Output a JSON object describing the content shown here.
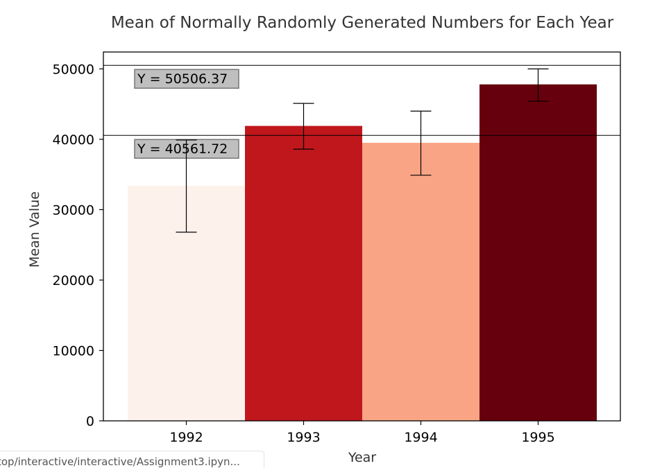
{
  "chart_data": {
    "type": "bar",
    "title": "Mean of Normally Randomly Generated Numbers for Each Year",
    "xlabel": "Year",
    "ylabel": "Mean Value",
    "categories": [
      "1992",
      "1993",
      "1994",
      "1995"
    ],
    "values": [
      33400,
      41900,
      39500,
      47800
    ],
    "error_low": [
      26800,
      38600,
      34900,
      45400
    ],
    "error_high": [
      39900,
      45100,
      44000,
      50000
    ],
    "colors": [
      "#fdf1ec",
      "#c0171d",
      "#f9a585",
      "#67000d"
    ],
    "ylim": [
      0,
      52400
    ],
    "yticks": [
      0,
      10000,
      20000,
      30000,
      40000,
      50000
    ],
    "ytick_labels": [
      "0",
      "10000",
      "20000",
      "30000",
      "40000",
      "50000"
    ],
    "reference_lines": [
      {
        "y": 50506.37,
        "label": "Y = 50506.37"
      },
      {
        "y": 40561.72,
        "label": "Y = 40561.72"
      }
    ]
  },
  "statusbar": {
    "text": "top/interactive/interactive/Assignment3.ipyn..."
  }
}
